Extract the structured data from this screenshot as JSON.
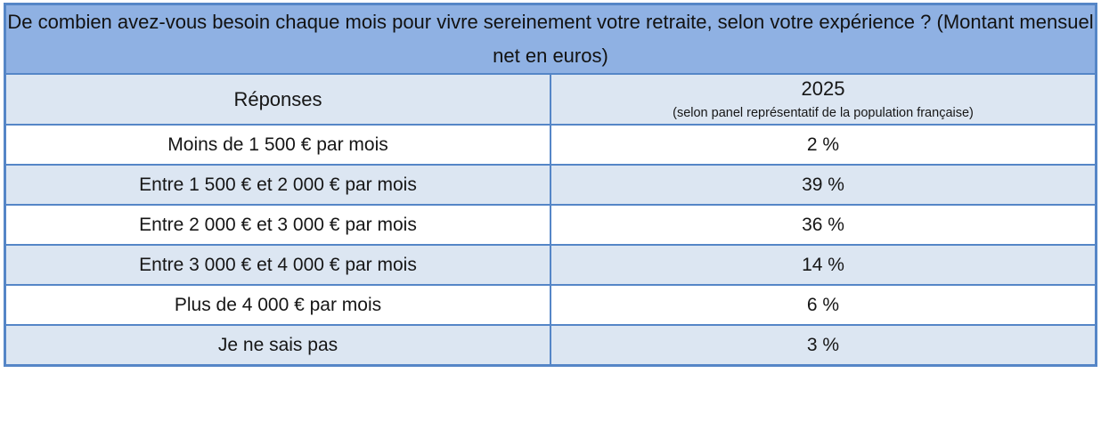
{
  "chart_data": {
    "type": "table",
    "title": "De combien avez-vous besoin chaque mois pour vivre sereinement votre retraite, selon votre expérience ? (Montant mensuel net en euros)",
    "columns": [
      "Réponses",
      "2025 (selon panel représentatif de la population française)"
    ],
    "categories": [
      "Moins de 1 500 € par mois",
      "Entre 1 500 € et 2 000 € par mois",
      "Entre 2 000 € et 3 000 € par mois",
      "Entre 3 000 € et 4 000 € par mois",
      "Plus de 4 000 € par mois",
      "Je ne sais pas"
    ],
    "values": [
      2,
      39,
      36,
      14,
      6,
      3
    ],
    "unit": "%"
  },
  "table": {
    "title": "De combien avez-vous besoin chaque mois pour vivre sereinement votre retraite, selon votre expérience ? (Montant mensuel net en euros)",
    "header": {
      "responses": "Réponses",
      "year": "2025",
      "year_note": "(selon panel représentatif de la population française)"
    },
    "rows": [
      {
        "label": "Moins de 1 500 € par mois",
        "value": "2 %"
      },
      {
        "label": "Entre 1 500 € et 2 000 € par mois",
        "value": "39 %"
      },
      {
        "label": "Entre 2 000 € et 3 000 € par mois",
        "value": "36 %"
      },
      {
        "label": "Entre 3 000 € et 4 000 € par mois",
        "value": "14 %"
      },
      {
        "label": "Plus de 4 000 € par mois",
        "value": "6 %"
      },
      {
        "label": "Je ne sais pas",
        "value": "3 %"
      }
    ],
    "colors": {
      "header_bg": "#8FB1E3",
      "subheader_bg": "#DCE6F2",
      "row_bg": "#FFFFFF",
      "row_alt_bg": "#DCE6F2",
      "border": "#5586C7",
      "text": "#161616"
    }
  }
}
